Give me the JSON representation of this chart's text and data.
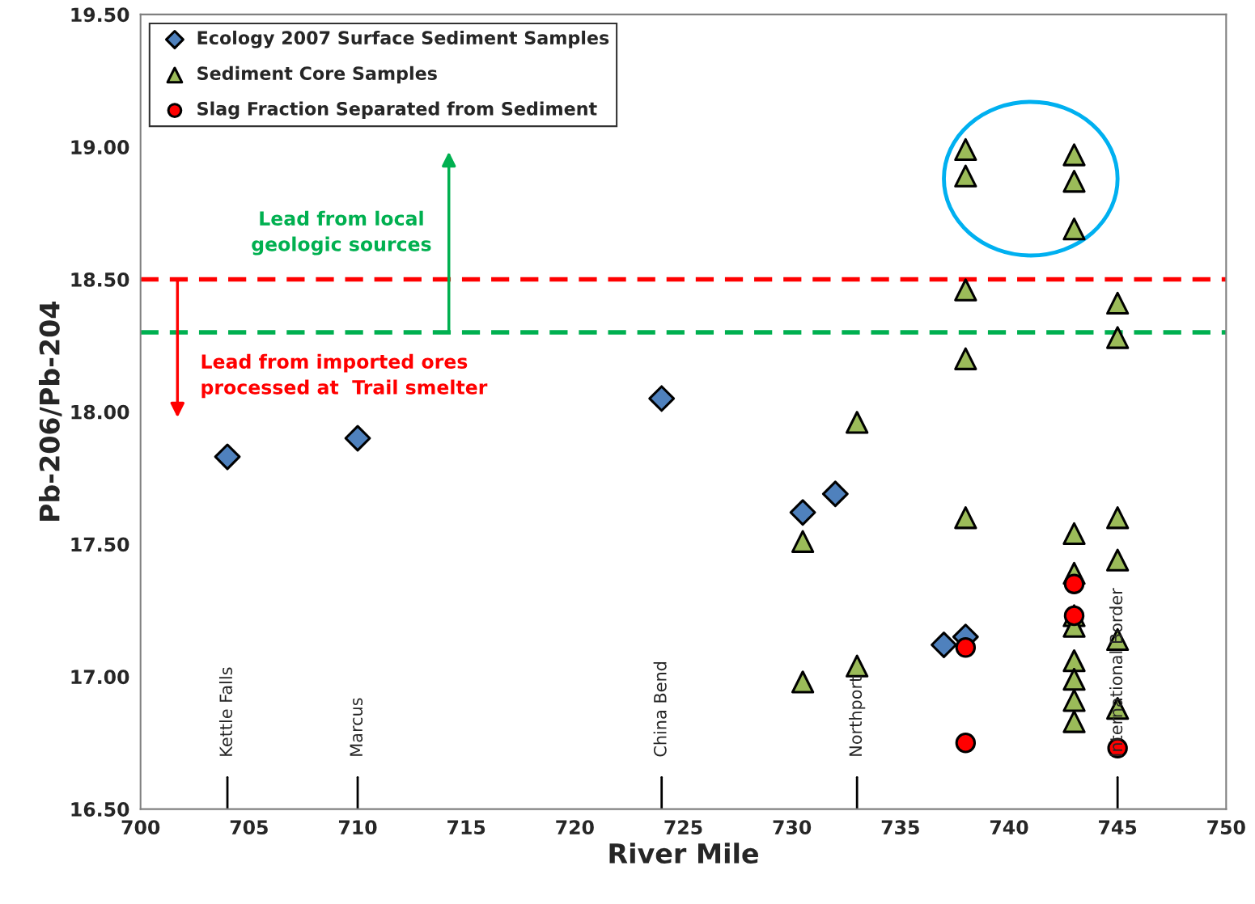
{
  "chart_data": {
    "type": "scatter",
    "xlabel": "River Mile",
    "ylabel": "Pb-206/Pb-204",
    "series": [
      {
        "name": "Ecology 2007 Surface Sediment Samples",
        "color": "#4f81bd",
        "marker": "diamond",
        "x": [
          704,
          710,
          724,
          730.5,
          732,
          737,
          738
        ],
        "values": [
          17.83,
          17.9,
          18.05,
          17.62,
          17.69,
          17.12,
          17.15
        ]
      },
      {
        "name": "Sediment Core Samples",
        "color": "#9bbb59",
        "marker": "triangle",
        "x": [
          738,
          738,
          738,
          738,
          738,
          743,
          743,
          743,
          743,
          743,
          743,
          743,
          743,
          743,
          743,
          743,
          745,
          745,
          745,
          745,
          745,
          745,
          730.5,
          730.5,
          733,
          733
        ],
        "values": [
          18.99,
          18.89,
          18.46,
          18.2,
          17.6,
          18.97,
          18.87,
          18.69,
          17.54,
          17.39,
          17.23,
          17.19,
          17.06,
          16.99,
          16.91,
          16.83,
          18.41,
          18.28,
          17.6,
          17.44,
          17.14,
          16.88,
          17.51,
          16.98,
          17.96,
          17.04
        ]
      },
      {
        "name": "Slag Fraction Separated from Sediment",
        "color": "#ff0000",
        "marker": "circle",
        "x": [
          738,
          738,
          743,
          743,
          745
        ],
        "values": [
          17.11,
          16.75,
          17.35,
          17.23,
          16.73
        ]
      }
    ],
    "xlim": [
      700,
      750
    ],
    "xticks": [
      700,
      705,
      710,
      715,
      720,
      725,
      730,
      735,
      740,
      745,
      750
    ],
    "ylim": [
      16.5,
      19.5
    ],
    "yticks": [
      {
        "value": 16.5,
        "label": "16.50"
      },
      {
        "value": 17,
        "label": "17.00"
      },
      {
        "value": 17.5,
        "label": "17.50"
      },
      {
        "value": 18,
        "label": "18.00"
      },
      {
        "value": 18.5,
        "label": "18.50"
      },
      {
        "value": 19,
        "label": "19.00"
      },
      {
        "value": 19.5,
        "label": "19.50"
      }
    ],
    "ref_lines": [
      {
        "axis": "y",
        "value": 18.5,
        "color": "#ff0000",
        "line_style": "dashed"
      },
      {
        "axis": "y",
        "value": 18.3,
        "color": "#00b050",
        "line_style": "dashed"
      },
      {
        "axis": "x",
        "value": 704,
        "label": "Kettle Falls"
      },
      {
        "axis": "x",
        "value": 710,
        "label": "Marcus"
      },
      {
        "axis": "x",
        "value": 724,
        "label": "China Bend"
      },
      {
        "axis": "x",
        "value": 733,
        "label": "Northport"
      },
      {
        "axis": "x",
        "value": 745,
        "label": "International Border"
      }
    ],
    "annotations": [
      "Lead from local\ngeologic sources",
      "Lead from imported ores\nprocessed at  Trail smelter"
    ],
    "legend": "top left",
    "grid": false
  }
}
